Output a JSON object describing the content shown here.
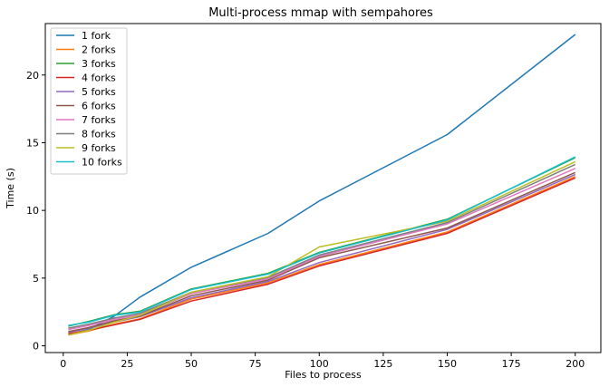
{
  "chart_data": {
    "type": "line",
    "title": "Multi-process mmap with sempahores",
    "xlabel": "Files to process",
    "ylabel": "Time (s)",
    "xlim": [
      -7,
      210
    ],
    "ylim": [
      -0.5,
      23.8
    ],
    "xticks": [
      0,
      25,
      50,
      75,
      100,
      125,
      150,
      175,
      200
    ],
    "yticks": [
      0,
      5,
      10,
      15,
      20
    ],
    "grid": false,
    "legend_position": "top-left",
    "x": [
      2,
      10,
      20,
      30,
      50,
      80,
      100,
      150,
      200
    ],
    "series": [
      {
        "name": "1 fork",
        "color": "#1f77b4",
        "values": [
          0.85,
          1.2,
          2.2,
          3.6,
          5.8,
          8.3,
          10.7,
          15.6,
          23.0
        ]
      },
      {
        "name": "2 forks",
        "color": "#ff7f0e",
        "values": [
          0.8,
          1.1,
          1.6,
          2.0,
          3.45,
          4.65,
          6.0,
          8.4,
          12.5
        ]
      },
      {
        "name": "3 forks",
        "color": "#2ca02c",
        "values": [
          1.45,
          1.8,
          2.3,
          2.55,
          4.2,
          5.35,
          6.9,
          9.35,
          13.9
        ]
      },
      {
        "name": "4 forks",
        "color": "#d62728",
        "values": [
          0.9,
          1.15,
          1.55,
          1.95,
          3.3,
          4.55,
          5.9,
          8.3,
          12.4
        ]
      },
      {
        "name": "5 forks",
        "color": "#9467bd",
        "values": [
          1.0,
          1.3,
          1.75,
          2.15,
          3.55,
          4.75,
          6.15,
          8.6,
          12.65
        ]
      },
      {
        "name": "6 forks",
        "color": "#8c564b",
        "values": [
          1.05,
          1.35,
          1.85,
          2.2,
          3.7,
          4.85,
          6.5,
          8.7,
          12.8
        ]
      },
      {
        "name": "7 forks",
        "color": "#e377c2",
        "values": [
          1.2,
          1.5,
          1.95,
          2.3,
          3.85,
          4.95,
          6.6,
          9.0,
          13.1
        ]
      },
      {
        "name": "8 forks",
        "color": "#7f7f7f",
        "values": [
          1.3,
          1.6,
          2.05,
          2.4,
          3.95,
          5.05,
          6.7,
          9.1,
          13.4
        ]
      },
      {
        "name": "9 forks",
        "color": "#bcbd22",
        "values": [
          0.8,
          1.15,
          1.75,
          2.25,
          3.95,
          5.1,
          7.3,
          9.2,
          13.6
        ]
      },
      {
        "name": "10 forks",
        "color": "#17becf",
        "values": [
          1.5,
          1.75,
          2.25,
          2.5,
          4.15,
          5.3,
          6.85,
          9.3,
          13.95
        ]
      }
    ]
  }
}
